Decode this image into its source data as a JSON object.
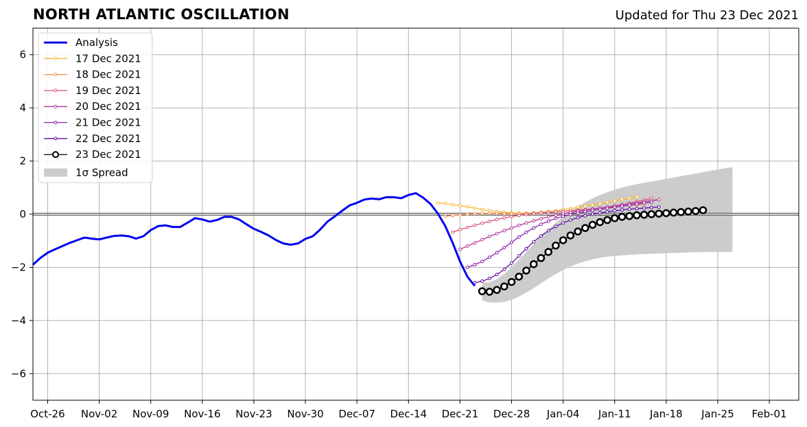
{
  "header": {
    "title": "NORTH ATLANTIC OSCILLATION",
    "updated": "Updated for Thu 23 Dec 2021"
  },
  "chart_data": {
    "type": "line",
    "title": "NORTH ATLANTIC OSCILLATION",
    "subtitle": "Updated for Thu 23 Dec 2021",
    "xlabel": "",
    "ylabel": "",
    "xlim": [
      "2021-10-24",
      "2022-02-05"
    ],
    "ylim": [
      -7,
      7
    ],
    "grid": true,
    "legend_position": "top-left",
    "x_tick_labels": [
      "Oct-26",
      "Nov-02",
      "Nov-09",
      "Nov-16",
      "Nov-23",
      "Nov-30",
      "Dec-07",
      "Dec-14",
      "Dec-21",
      "Dec-28",
      "Jan-04",
      "Jan-11",
      "Jan-18",
      "Jan-25",
      "Feb-01"
    ],
    "x_tick_dates": [
      "2021-10-26",
      "2021-11-02",
      "2021-11-09",
      "2021-11-16",
      "2021-11-23",
      "2021-11-30",
      "2021-12-07",
      "2021-12-14",
      "2021-12-21",
      "2021-12-28",
      "2022-01-04",
      "2022-01-11",
      "2022-01-18",
      "2022-01-25",
      "2022-02-01"
    ],
    "y_tick_labels": [
      "6",
      "4",
      "2",
      "0",
      "−2",
      "−4",
      "−6"
    ],
    "y_tick_values": [
      6,
      4,
      2,
      0,
      -2,
      -4,
      -6
    ],
    "analysis": {
      "name": "Analysis",
      "color": "#0000ee",
      "start_date": "2021-10-24",
      "values": [
        -1.9,
        -1.65,
        -1.45,
        -1.32,
        -1.2,
        -1.08,
        -0.98,
        -0.88,
        -0.92,
        -0.95,
        -0.88,
        -0.82,
        -0.8,
        -0.83,
        -0.92,
        -0.83,
        -0.6,
        -0.45,
        -0.42,
        -0.48,
        -0.48,
        -0.32,
        -0.15,
        -0.2,
        -0.28,
        -0.22,
        -0.1,
        -0.1,
        -0.2,
        -0.38,
        -0.55,
        -0.67,
        -0.8,
        -0.97,
        -1.1,
        -1.15,
        -1.1,
        -0.93,
        -0.83,
        -0.58,
        -0.28,
        -0.08,
        0.13,
        0.33,
        0.43,
        0.55,
        0.59,
        0.56,
        0.64,
        0.64,
        0.6,
        0.72,
        0.79,
        0.62,
        0.38,
        0.02,
        -0.45,
        -1.08,
        -1.78,
        -2.35,
        -2.7
      ]
    },
    "forecasts": [
      {
        "name": "17 Dec 2021",
        "color": "#f7b733",
        "start_date": "2021-12-18",
        "values": [
          0.42,
          0.4,
          0.36,
          0.32,
          0.28,
          0.23,
          0.18,
          0.13,
          0.1,
          0.07,
          0.05,
          0.04,
          0.04,
          0.05,
          0.07,
          0.1,
          0.13,
          0.17,
          0.21,
          0.26,
          0.3,
          0.35,
          0.4,
          0.45,
          0.5,
          0.55,
          0.6,
          0.65
        ]
      },
      {
        "name": "18 Dec 2021",
        "color": "#f08a4b",
        "start_date": "2021-12-19",
        "values": [
          -0.08,
          -0.05,
          -0.02,
          0.0,
          0.02,
          0.03,
          0.03,
          0.03,
          0.02,
          0.02,
          0.02,
          0.03,
          0.04,
          0.05,
          0.07,
          0.09,
          0.11,
          0.13,
          0.15,
          0.17,
          0.2,
          0.22,
          0.25,
          0.28,
          0.3,
          0.33,
          0.35,
          0.38
        ]
      },
      {
        "name": "19 Dec 2021",
        "color": "#d9506f",
        "start_date": "2021-12-20",
        "values": [
          -0.68,
          -0.58,
          -0.5,
          -0.42,
          -0.34,
          -0.27,
          -0.2,
          -0.14,
          -0.09,
          -0.05,
          -0.01,
          0.02,
          0.05,
          0.07,
          0.09,
          0.11,
          0.13,
          0.15,
          0.17,
          0.2,
          0.23,
          0.27,
          0.31,
          0.36,
          0.41,
          0.47,
          0.53,
          0.6
        ]
      },
      {
        "name": "20 Dec 2021",
        "color": "#b53595",
        "start_date": "2021-12-21",
        "values": [
          -1.32,
          -1.2,
          -1.08,
          -0.96,
          -0.84,
          -0.73,
          -0.62,
          -0.52,
          -0.42,
          -0.33,
          -0.25,
          -0.17,
          -0.1,
          -0.04,
          0.02,
          0.07,
          0.11,
          0.15,
          0.19,
          0.23,
          0.27,
          0.31,
          0.35,
          0.39,
          0.43,
          0.47,
          0.51,
          0.55
        ]
      },
      {
        "name": "21 Dec 2021",
        "color": "#8a1fa9",
        "start_date": "2021-12-22",
        "values": [
          -2.0,
          -1.9,
          -1.78,
          -1.62,
          -1.45,
          -1.26,
          -1.06,
          -0.86,
          -0.68,
          -0.52,
          -0.38,
          -0.26,
          -0.16,
          -0.08,
          -0.02,
          0.04,
          0.09,
          0.14,
          0.18,
          0.22,
          0.26,
          0.3,
          0.34,
          0.38,
          0.42,
          0.45
        ]
      },
      {
        "name": "22 Dec 2021",
        "color": "#5a0ca0",
        "start_date": "2021-12-23",
        "values": [
          -2.58,
          -2.52,
          -2.42,
          -2.27,
          -2.08,
          -1.84,
          -1.57,
          -1.3,
          -1.04,
          -0.82,
          -0.62,
          -0.46,
          -0.33,
          -0.22,
          -0.13,
          -0.06,
          0.0,
          0.05,
          0.09,
          0.13,
          0.16,
          0.19,
          0.21,
          0.23,
          0.25,
          0.27
        ]
      },
      {
        "name": "23 Dec 2021",
        "color": "#000000",
        "start_date": "2021-12-24",
        "values": [
          -2.9,
          -2.92,
          -2.85,
          -2.72,
          -2.55,
          -2.35,
          -2.12,
          -1.88,
          -1.65,
          -1.42,
          -1.18,
          -0.98,
          -0.8,
          -0.65,
          -0.52,
          -0.4,
          -0.3,
          -0.22,
          -0.15,
          -0.1,
          -0.07,
          -0.04,
          -0.02,
          0.0,
          0.02,
          0.04,
          0.06,
          0.08,
          0.1,
          0.12,
          0.15
        ]
      }
    ],
    "spread": {
      "name": "1σ Spread",
      "color": "#cccccc",
      "start_date": "2021-12-24",
      "upper": [
        -2.6,
        -2.55,
        -2.45,
        -2.25,
        -2.0,
        -1.72,
        -1.42,
        -1.12,
        -0.85,
        -0.58,
        -0.32,
        -0.08,
        0.12,
        0.3,
        0.45,
        0.6,
        0.72,
        0.83,
        0.92,
        1.0,
        1.07,
        1.13,
        1.18,
        1.23,
        1.28,
        1.33,
        1.38,
        1.43,
        1.48,
        1.53,
        1.58,
        1.63,
        1.68,
        1.73,
        1.77
      ],
      "lower": [
        -3.25,
        -3.32,
        -3.33,
        -3.3,
        -3.22,
        -3.1,
        -2.95,
        -2.78,
        -2.6,
        -2.42,
        -2.25,
        -2.1,
        -1.97,
        -1.86,
        -1.77,
        -1.7,
        -1.64,
        -1.6,
        -1.57,
        -1.55,
        -1.53,
        -1.51,
        -1.5,
        -1.49,
        -1.48,
        -1.47,
        -1.46,
        -1.45,
        -1.44,
        -1.43,
        -1.43,
        -1.42,
        -1.42,
        -1.42,
        -1.42
      ]
    }
  }
}
